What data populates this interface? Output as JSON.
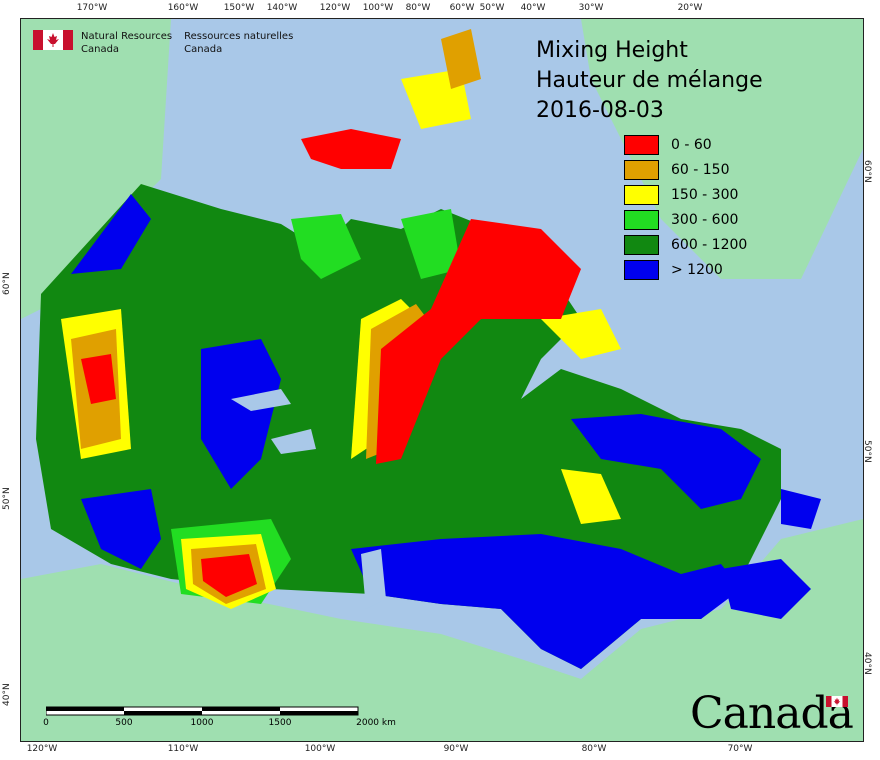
{
  "map": {
    "title_en": "Mixing Height",
    "title_fr": "Hauteur de mélange",
    "date": "2016-08-03"
  },
  "agency": {
    "name_en_line1": "Natural Resources",
    "name_en_line2": "Canada",
    "name_fr_line1": "Ressources naturelles",
    "name_fr_line2": "Canada"
  },
  "wordmark": "Canada",
  "legend": [
    {
      "label": "0 - 60",
      "color": "#ff0000"
    },
    {
      "label": "60 - 150",
      "color": "#e0a000"
    },
    {
      "label": "150 - 300",
      "color": "#ffff00"
    },
    {
      "label": "300 - 600",
      "color": "#22dd22"
    },
    {
      "label": "600 - 1200",
      "color": "#118811"
    },
    {
      "label": "> 1200",
      "color": "#0000ee"
    }
  ],
  "graticule": {
    "top": [
      "170°W",
      "160°W",
      "150°W",
      "140°W",
      "120°W",
      "100°W",
      "80°W",
      "60°W",
      "50°W",
      "40°W",
      "30°W",
      "20°W"
    ],
    "bottom": [
      "120°W",
      "110°W",
      "100°W",
      "90°W",
      "80°W",
      "70°W"
    ],
    "left": [
      "60°N",
      "50°N",
      "40°N"
    ],
    "right": [
      "60°N",
      "50°N",
      "40°N"
    ]
  },
  "scale_bar": {
    "labels": [
      "0",
      "500",
      "1000",
      "1500",
      "2000 km"
    ]
  },
  "colors": {
    "ocean": "#a9c8e8",
    "land_outside": "#9fdfb0"
  }
}
